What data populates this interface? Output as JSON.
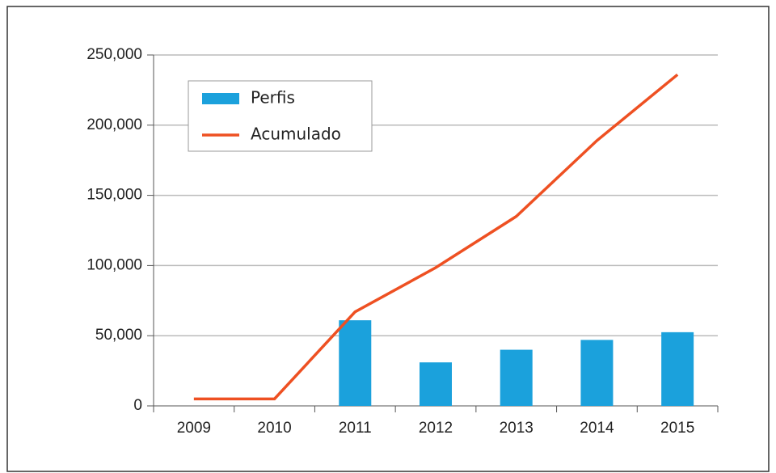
{
  "chart_data": {
    "type": "combo",
    "categories": [
      "2009",
      "2010",
      "2011",
      "2012",
      "2013",
      "2014",
      "2015"
    ],
    "series": [
      {
        "name": "Perfis",
        "type": "bar",
        "color": "#1ba1dc",
        "values": [
          null,
          null,
          61000,
          31000,
          40000,
          47000,
          52500
        ]
      },
      {
        "name": "Acumulado",
        "type": "line",
        "color": "#ee5022",
        "values": [
          5000,
          5000,
          67000,
          98500,
          135000,
          189000,
          236000
        ]
      }
    ],
    "ylim": [
      0,
      250000
    ],
    "yticks": [
      0,
      {
        "value": 50000,
        "label": "50,000"
      },
      {
        "value": 100000,
        "label": "100,000"
      },
      {
        "value": 150000,
        "label": "150,000"
      },
      {
        "value": 200000,
        "label": "200,000"
      },
      {
        "value": 250000,
        "label": "250,000"
      }
    ],
    "grid": true,
    "legend": "top-left"
  }
}
